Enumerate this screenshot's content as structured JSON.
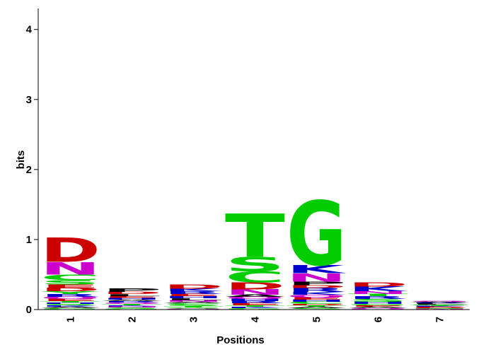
{
  "chart_data": {
    "type": "sequence-logo",
    "xlabel": "Positions",
    "ylabel": "bits",
    "ylim": [
      0,
      4.3
    ],
    "yticks": [
      "0",
      "1",
      "2",
      "3",
      "4"
    ],
    "positions": [
      "1",
      "2",
      "3",
      "4",
      "5",
      "6",
      "7"
    ],
    "colors": {
      "D": "#cc0000",
      "E": "#cc0000",
      "N": "#cc00cc",
      "Q": "#cc00cc",
      "S": "#00cc00",
      "G": "#00cc00",
      "T": "#00cc00",
      "C": "#00cc00",
      "Y": "#00cc00",
      "K": "#0000cc",
      "R": "#0000cc",
      "H": "#0000cc",
      "A": "#000000",
      "V": "#000000",
      "L": "#000000",
      "I": "#000000",
      "P": "#000000",
      "W": "#000000",
      "F": "#000000",
      "M": "#000000"
    },
    "stacks": [
      [
        {
          "letter": "G",
          "height": 0.02
        },
        {
          "letter": "A",
          "height": 0.02
        },
        {
          "letter": "K",
          "height": 0.02
        },
        {
          "letter": "S",
          "height": 0.02
        },
        {
          "letter": "H",
          "height": 0.02
        },
        {
          "letter": "T",
          "height": 0.02
        },
        {
          "letter": "E",
          "height": 0.03
        },
        {
          "letter": "Q",
          "height": 0.03
        },
        {
          "letter": "R",
          "height": 0.04
        },
        {
          "letter": "Y",
          "height": 0.04
        },
        {
          "letter": "D",
          "height": 0.05
        },
        {
          "letter": "E",
          "height": 0.05
        },
        {
          "letter": "S",
          "height": 0.06
        },
        {
          "letter": "C",
          "height": 0.08
        },
        {
          "letter": "N",
          "height": 0.18
        },
        {
          "letter": "D",
          "height": 0.35
        }
      ],
      [
        {
          "letter": "G",
          "height": 0.015
        },
        {
          "letter": "S",
          "height": 0.015
        },
        {
          "letter": "N",
          "height": 0.015
        },
        {
          "letter": "K",
          "height": 0.015
        },
        {
          "letter": "T",
          "height": 0.02
        },
        {
          "letter": "Q",
          "height": 0.02
        },
        {
          "letter": "R",
          "height": 0.02
        },
        {
          "letter": "A",
          "height": 0.02
        },
        {
          "letter": "H",
          "height": 0.025
        },
        {
          "letter": "E",
          "height": 0.025
        },
        {
          "letter": "L",
          "height": 0.03
        },
        {
          "letter": "D",
          "height": 0.03
        },
        {
          "letter": "P",
          "height": 0.05
        }
      ],
      [
        {
          "letter": "Q",
          "height": 0.015
        },
        {
          "letter": "G",
          "height": 0.015
        },
        {
          "letter": "T",
          "height": 0.02
        },
        {
          "letter": "S",
          "height": 0.02
        },
        {
          "letter": "C",
          "height": 0.02
        },
        {
          "letter": "A",
          "height": 0.02
        },
        {
          "letter": "N",
          "height": 0.025
        },
        {
          "letter": "L",
          "height": 0.025
        },
        {
          "letter": "H",
          "height": 0.03
        },
        {
          "letter": "E",
          "height": 0.03
        },
        {
          "letter": "R",
          "height": 0.04
        },
        {
          "letter": "K",
          "height": 0.04
        },
        {
          "letter": "D",
          "height": 0.06
        }
      ],
      [
        {
          "letter": "G",
          "height": 0.02
        },
        {
          "letter": "K",
          "height": 0.02
        },
        {
          "letter": "T",
          "height": 0.02
        },
        {
          "letter": "E",
          "height": 0.03
        },
        {
          "letter": "R",
          "height": 0.03
        },
        {
          "letter": "H",
          "height": 0.03
        },
        {
          "letter": "Q",
          "height": 0.03
        },
        {
          "letter": "A",
          "height": 0.03
        },
        {
          "letter": "N",
          "height": 0.08
        },
        {
          "letter": "D",
          "height": 0.1
        },
        {
          "letter": "C",
          "height": 0.16
        },
        {
          "letter": "S",
          "height": 0.2
        },
        {
          "letter": "T",
          "height": 0.62
        }
      ],
      [
        {
          "letter": "S",
          "height": 0.02
        },
        {
          "letter": "A",
          "height": 0.02
        },
        {
          "letter": "T",
          "height": 0.02
        },
        {
          "letter": "D",
          "height": 0.02
        },
        {
          "letter": "C",
          "height": 0.03
        },
        {
          "letter": "H",
          "height": 0.03
        },
        {
          "letter": "E",
          "height": 0.03
        },
        {
          "letter": "Q",
          "height": 0.04
        },
        {
          "letter": "K",
          "height": 0.04
        },
        {
          "letter": "R",
          "height": 0.06
        },
        {
          "letter": "D",
          "height": 0.04
        },
        {
          "letter": "P",
          "height": 0.05
        },
        {
          "letter": "N",
          "height": 0.12
        },
        {
          "letter": "K",
          "height": 0.12
        },
        {
          "letter": "G",
          "height": 0.92
        }
      ],
      [
        {
          "letter": "Q",
          "height": 0.02
        },
        {
          "letter": "A",
          "height": 0.02
        },
        {
          "letter": "E",
          "height": 0.02
        },
        {
          "letter": "G",
          "height": 0.02
        },
        {
          "letter": "H",
          "height": 0.03
        },
        {
          "letter": "S",
          "height": 0.04
        },
        {
          "letter": "R",
          "height": 0.04
        },
        {
          "letter": "T",
          "height": 0.03
        },
        {
          "letter": "N",
          "height": 0.04
        },
        {
          "letter": "K",
          "height": 0.07
        },
        {
          "letter": "D",
          "height": 0.06
        }
      ],
      [
        {
          "letter": "N",
          "height": 0.01
        },
        {
          "letter": "S",
          "height": 0.01
        },
        {
          "letter": "D",
          "height": 0.01
        },
        {
          "letter": "E",
          "height": 0.01
        },
        {
          "letter": "K",
          "height": 0.01
        },
        {
          "letter": "T",
          "height": 0.01
        },
        {
          "letter": "G",
          "height": 0.01
        },
        {
          "letter": "L",
          "height": 0.01
        },
        {
          "letter": "P",
          "height": 0.01
        },
        {
          "letter": "R",
          "height": 0.01
        },
        {
          "letter": "A",
          "height": 0.01
        },
        {
          "letter": "Q",
          "height": 0.01
        }
      ]
    ]
  }
}
